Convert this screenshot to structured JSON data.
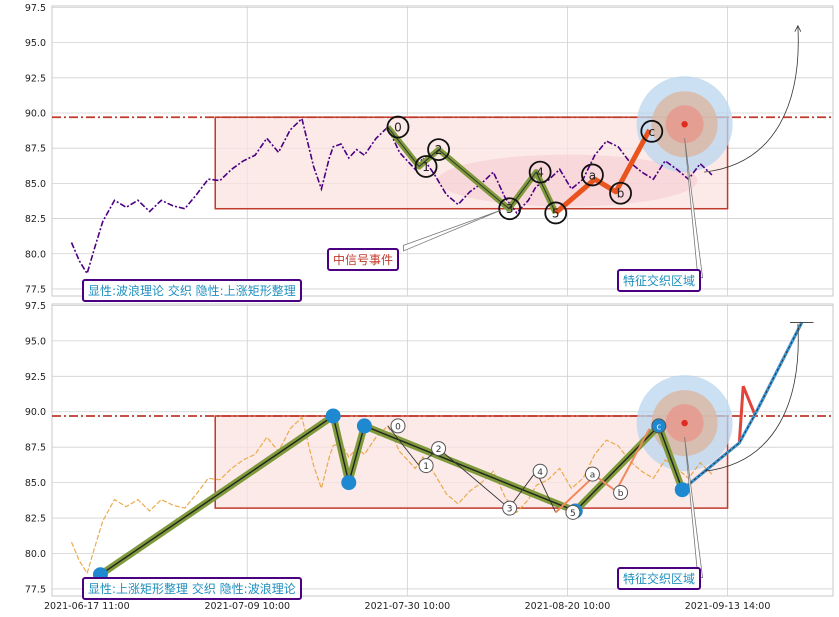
{
  "chart_data": [
    {
      "type": "line",
      "panel": "top",
      "ylim": [
        77,
        97.6
      ],
      "yticks": [
        "97.5",
        "95.0",
        "92.5",
        "90.0",
        "87.5",
        "85.0",
        "82.5",
        "80.0",
        "77.5"
      ],
      "grid": true,
      "reference_line": 89.7,
      "rectangle": {
        "x": [
          0.209,
          0.865
        ],
        "y": [
          83.2,
          89.7
        ]
      },
      "series": [
        {
          "color": "#4b0082",
          "x": [
            0.025,
            0.035,
            0.045,
            0.055,
            0.065,
            0.08,
            0.095,
            0.11,
            0.125,
            0.14,
            0.155,
            0.17,
            0.185,
            0.2,
            0.215,
            0.23,
            0.245,
            0.26,
            0.275,
            0.29,
            0.305,
            0.32,
            0.335,
            0.345,
            0.355,
            0.36,
            0.37,
            0.38,
            0.39,
            0.4,
            0.415,
            0.43,
            0.445,
            0.455,
            0.465,
            0.475,
            0.49,
            0.505,
            0.52,
            0.535,
            0.55,
            0.565,
            0.58,
            0.595,
            0.61,
            0.62,
            0.635,
            0.65,
            0.665,
            0.68,
            0.695,
            0.71,
            0.725,
            0.74,
            0.755,
            0.77,
            0.785,
            0.8,
            0.815,
            0.83,
            0.845
          ],
          "y": [
            80.8,
            79.5,
            78.6,
            80.5,
            82.3,
            83.8,
            83.3,
            83.8,
            83.0,
            83.8,
            83.4,
            83.2,
            84.2,
            85.3,
            85.2,
            86.0,
            86.6,
            87.0,
            88.2,
            87.2,
            88.8,
            89.6,
            86.2,
            84.6,
            86.8,
            87.6,
            87.8,
            86.8,
            87.4,
            87.0,
            88.2,
            89.0,
            87.2,
            86.6,
            86.0,
            86.8,
            85.6,
            84.2,
            83.5,
            84.4,
            85.0,
            85.8,
            84.0,
            82.9,
            83.8,
            84.8,
            85.2,
            86.0,
            84.6,
            85.3,
            87.0,
            88.0,
            87.6,
            86.5,
            85.8,
            85.3,
            86.6,
            86.0,
            85.3,
            86.4,
            85.6
          ]
        }
      ],
      "wave_labels": [
        "0",
        "1",
        "2",
        "3",
        "4",
        "5",
        "a",
        "b",
        "c"
      ],
      "annotations": [
        "中信号事件",
        "特征交织区域",
        "显性:波浪理论 交织 隐性:上涨矩形整理"
      ]
    },
    {
      "type": "line",
      "panel": "bottom",
      "ylim": [
        77,
        97.6
      ],
      "yticks": [
        "97.5",
        "95.0",
        "92.5",
        "90.0",
        "87.5",
        "85.0",
        "82.5",
        "80.0",
        "77.5"
      ],
      "grid": true,
      "reference_line": 89.7,
      "rectangle": {
        "x": [
          0.209,
          0.865
        ],
        "y": [
          83.2,
          89.7
        ]
      },
      "xticks": [
        "2021-06-17 11:00",
        "2021-07-09 10:00",
        "2021-07-30 10:00",
        "2021-08-20 10:00",
        "2021-09-13 14:00"
      ],
      "series": [
        {
          "color": "#e8a33c",
          "x": [
            0.025,
            0.035,
            0.045,
            0.055,
            0.065,
            0.08,
            0.095,
            0.11,
            0.125,
            0.14,
            0.155,
            0.17,
            0.185,
            0.2,
            0.215,
            0.23,
            0.245,
            0.26,
            0.275,
            0.29,
            0.305,
            0.32,
            0.335,
            0.345,
            0.355,
            0.36,
            0.37,
            0.38,
            0.39,
            0.4,
            0.415,
            0.43,
            0.445,
            0.455,
            0.465,
            0.475,
            0.49,
            0.505,
            0.52,
            0.535,
            0.55,
            0.565,
            0.58,
            0.595,
            0.61,
            0.62,
            0.635,
            0.65,
            0.665,
            0.68,
            0.695,
            0.71,
            0.725,
            0.74,
            0.755,
            0.77,
            0.785,
            0.8,
            0.815,
            0.83,
            0.845
          ],
          "y": [
            80.8,
            79.5,
            78.6,
            80.5,
            82.3,
            83.8,
            83.3,
            83.8,
            83.0,
            83.8,
            83.4,
            83.2,
            84.2,
            85.3,
            85.2,
            86.0,
            86.6,
            87.0,
            88.2,
            87.2,
            88.8,
            89.6,
            86.2,
            84.6,
            86.8,
            87.6,
            87.8,
            86.8,
            87.4,
            87.0,
            88.2,
            89.0,
            87.2,
            86.6,
            86.0,
            86.8,
            85.6,
            84.2,
            83.5,
            84.4,
            85.0,
            85.8,
            84.0,
            82.9,
            83.8,
            84.8,
            85.2,
            86.0,
            84.6,
            85.3,
            87.0,
            88.0,
            87.6,
            86.5,
            85.8,
            85.3,
            86.6,
            86.0,
            85.3,
            86.4,
            85.6
          ]
        }
      ],
      "trend_path": {
        "x": [
          0.062,
          0.36,
          0.38,
          0.4,
          0.67,
          0.777,
          0.807
        ],
        "y": [
          78.5,
          89.7,
          85.0,
          89.0,
          83.0,
          89.0,
          84.5
        ]
      },
      "projection": {
        "x": [
          0.807,
          0.88,
          0.885,
          0.9,
          0.96
        ],
        "y": [
          84.5,
          87.8,
          91.8,
          89.8,
          96.3
        ]
      },
      "wave_labels": [
        "0",
        "1",
        "2",
        "3",
        "4",
        "5",
        "a",
        "b",
        "c"
      ],
      "annotations": [
        "特征交织区域",
        "显性:上涨矩形整理 交织 隐性:波浪理论"
      ]
    }
  ],
  "labels": {
    "top_event": "中信号事件",
    "top_zone": "特征交织区域",
    "top_pattern": "显性:波浪理论 交织 隐性:上涨矩形整理",
    "bottom_zone": "特征交织区域",
    "bottom_pattern": "显性:上涨矩形整理 交织 隐性:波浪理论"
  },
  "colors": {
    "grid": "#d0d0d0",
    "axes_bg": "#ffffff",
    "refline": "#c0392b",
    "rect_stroke": "#c0392b",
    "rect_fill": "#fbe3e1",
    "label_border": "#4b0082",
    "label_text": "#1f8fbf",
    "event_text": "#c0392b",
    "wave_green": "#7f9a3a",
    "wave_orange": "#e8541e",
    "dot_blue": "#1e88d0"
  }
}
